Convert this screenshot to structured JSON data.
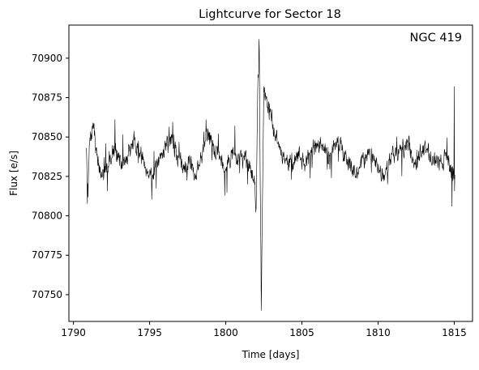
{
  "chart_data": {
    "type": "line",
    "title": "Lightcurve for Sector 18",
    "xlabel": "Time [days]",
    "ylabel": "Flux [e/s]",
    "annotation": "NGC 419",
    "annotation_position": "top-right",
    "xlim": [
      1789.7,
      1816.2
    ],
    "ylim": [
      70733,
      70921
    ],
    "grid": false,
    "legend": "none",
    "line_color": "#000000",
    "x_ticks": [
      1790,
      1795,
      1800,
      1805,
      1810,
      1815
    ],
    "x_tick_labels": [
      "1790",
      "1795",
      "1800",
      "1805",
      "1810",
      "1815"
    ],
    "y_ticks": [
      70750,
      70775,
      70800,
      70825,
      70850,
      70875,
      70900
    ],
    "y_tick_labels": [
      "70750",
      "70775",
      "70800",
      "70825",
      "70850",
      "70875",
      "70900"
    ],
    "series": [
      {
        "segments": [
          {
            "x_start": 1790.85,
            "x_step": 0.02083,
            "seed": 7,
            "anchors": [
              [
                1790.85,
                70843
              ],
              [
                1790.95,
                70812
              ],
              [
                1791.05,
                70845
              ],
              [
                1791.3,
                70858
              ],
              [
                1791.6,
                70832
              ],
              [
                1792.0,
                70825
              ],
              [
                1792.4,
                70838
              ],
              [
                1792.8,
                70842
              ],
              [
                1793.2,
                70830
              ],
              [
                1793.6,
                70838
              ],
              [
                1794.0,
                70848
              ],
              [
                1794.4,
                70840
              ],
              [
                1794.8,
                70830
              ],
              [
                1795.2,
                70826
              ],
              [
                1795.6,
                70832
              ],
              [
                1796.0,
                70845
              ],
              [
                1796.4,
                70850
              ],
              [
                1796.8,
                70838
              ],
              [
                1797.2,
                70832
              ],
              [
                1797.6,
                70836
              ],
              [
                1798.0,
                70826
              ],
              [
                1798.4,
                70838
              ],
              [
                1798.8,
                70850
              ],
              [
                1799.2,
                70845
              ],
              [
                1799.6,
                70838
              ],
              [
                1800.0,
                70830
              ],
              [
                1800.4,
                70840
              ],
              [
                1800.8,
                70835
              ],
              [
                1801.2,
                70838
              ],
              [
                1801.6,
                70830
              ],
              [
                1801.9,
                70820
              ],
              [
                1802.0,
                70805
              ],
              [
                1802.1,
                70880
              ],
              [
                1802.2,
                70905
              ],
              [
                1802.3,
                70779
              ],
              [
                1802.33,
                70740
              ],
              [
                1802.38,
                70777
              ]
            ],
            "noise": 9,
            "spikes": [
              [
                1791.3,
                70868
              ],
              [
                1798.7,
                70861
              ],
              [
                1800.6,
                70857
              ],
              [
                1802.18,
                70912
              ]
            ]
          },
          {
            "x_start": 1802.5,
            "x_step": 0.02083,
            "seed": 11,
            "anchors": [
              [
                1802.5,
                70882
              ],
              [
                1803.1,
                70858
              ],
              [
                1803.6,
                70842
              ],
              [
                1804.0,
                70835
              ],
              [
                1804.4,
                70833
              ],
              [
                1804.8,
                70838
              ],
              [
                1805.2,
                70832
              ],
              [
                1805.6,
                70840
              ],
              [
                1806.0,
                70845
              ],
              [
                1806.4,
                70842
              ],
              [
                1806.8,
                70838
              ],
              [
                1807.2,
                70846
              ],
              [
                1807.6,
                70842
              ],
              [
                1808.0,
                70832
              ],
              [
                1808.4,
                70826
              ],
              [
                1808.8,
                70830
              ],
              [
                1809.2,
                70838
              ],
              [
                1809.6,
                70838
              ],
              [
                1810.0,
                70830
              ],
              [
                1810.4,
                70826
              ],
              [
                1810.8,
                70836
              ],
              [
                1811.2,
                70840
              ],
              [
                1811.6,
                70842
              ],
              [
                1812.0,
                70845
              ],
              [
                1812.4,
                70834
              ],
              [
                1812.8,
                70840
              ],
              [
                1813.2,
                70842
              ],
              [
                1813.6,
                70838
              ],
              [
                1814.0,
                70832
              ],
              [
                1814.4,
                70838
              ],
              [
                1814.8,
                70828
              ],
              [
                1815.05,
                70826
              ]
            ],
            "noise": 9,
            "spikes": [
              [
                1806.0,
                70858
              ],
              [
                1808.4,
                70805
              ],
              [
                1811.6,
                70860
              ],
              [
                1814.85,
                70806
              ],
              [
                1815.0,
                70882
              ]
            ]
          }
        ]
      }
    ]
  }
}
